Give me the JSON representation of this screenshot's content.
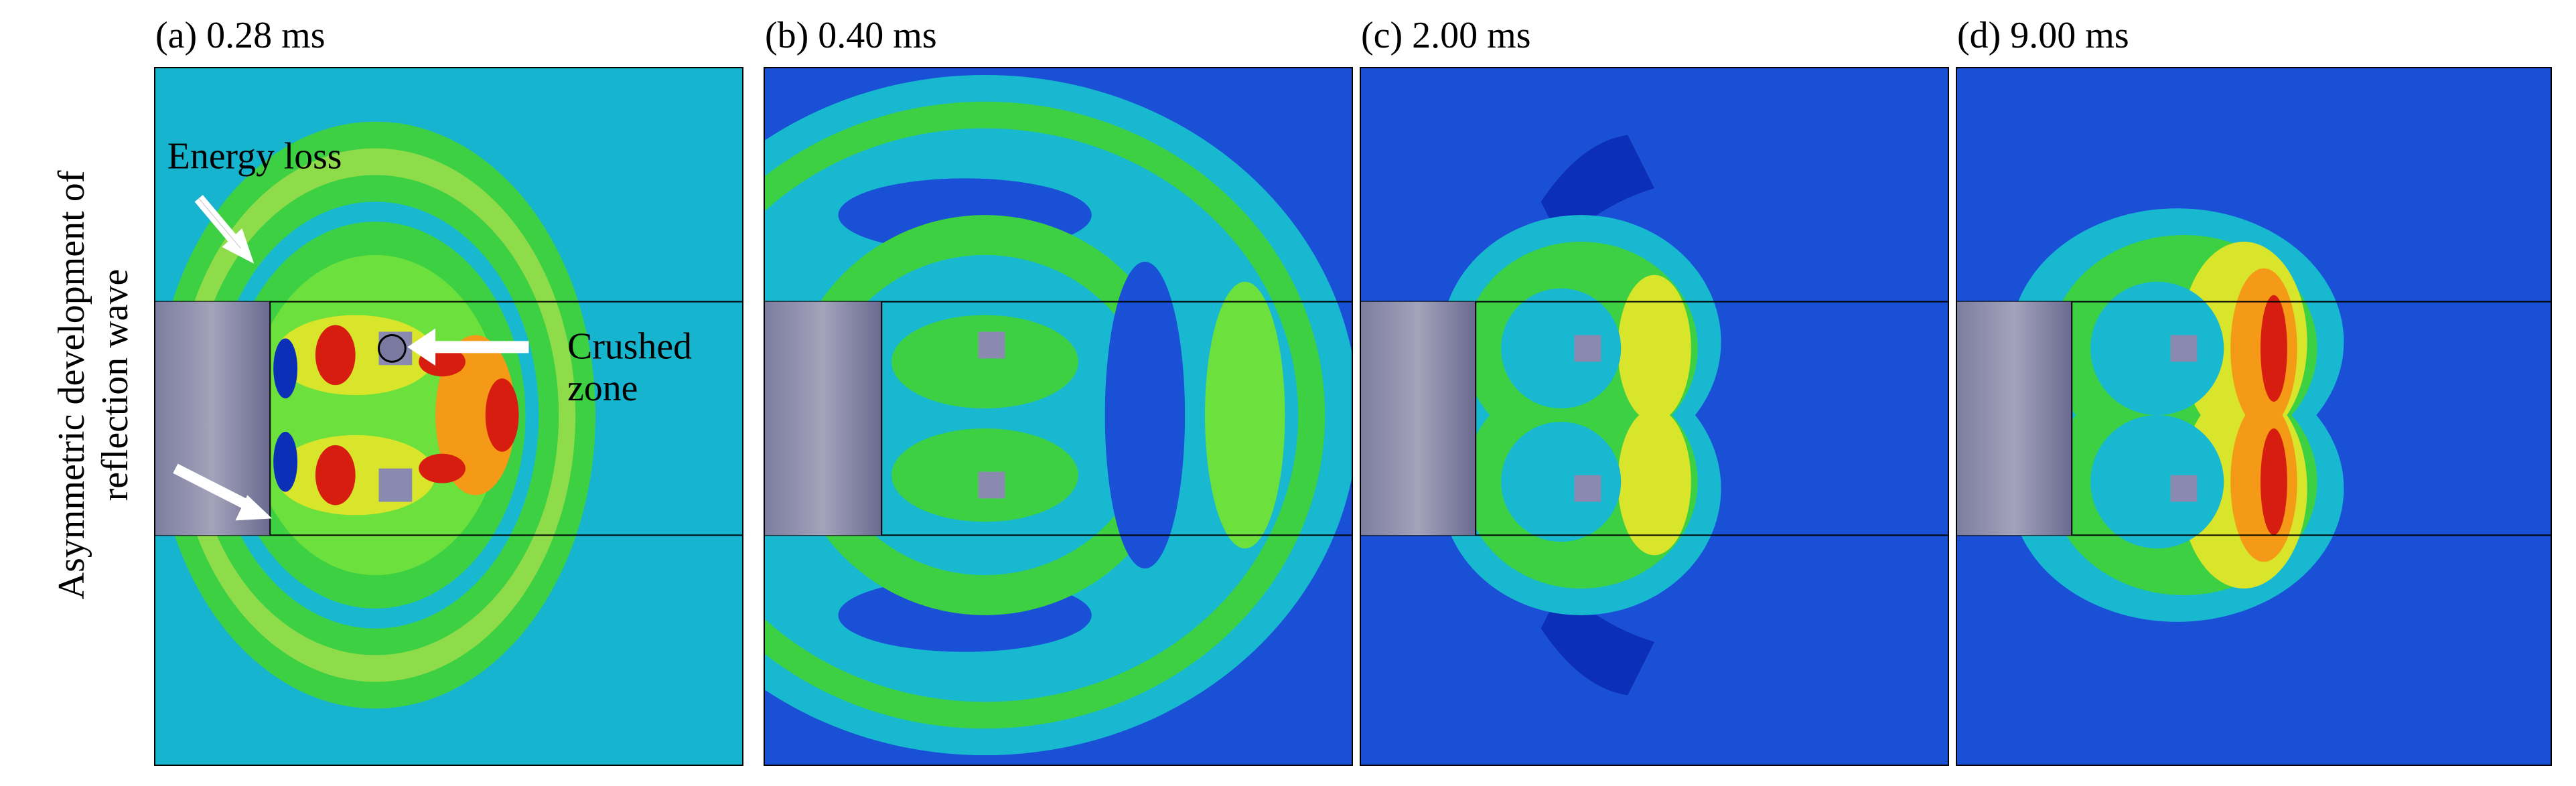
{
  "figure": {
    "side_label_lines": [
      "Asymmetric development of",
      "reflection wave"
    ],
    "panels": [
      {
        "label": "(a) 0.28 ms"
      },
      {
        "label": "(b) 0.40 ms"
      },
      {
        "label": "(c) 2.00 ms"
      },
      {
        "label": "(d) 9.00 ms"
      }
    ],
    "annotations": {
      "energy_loss": "Energy loss",
      "crushed_line1": "Crushed",
      "crushed_line2": "zone"
    },
    "colors": {
      "background_a": "#17b4cf",
      "background_bcd": "#1a50d6",
      "cyan": "#18b8d0",
      "green": "#3ed043",
      "light_green": "#6ce03c",
      "yellow": "#d8e52a",
      "orange": "#f59a16",
      "red": "#d61d10",
      "dark_blue": "#0b2fb6",
      "rod_light": "#9a9ab2",
      "rod_dark": "#5a5a80"
    }
  }
}
